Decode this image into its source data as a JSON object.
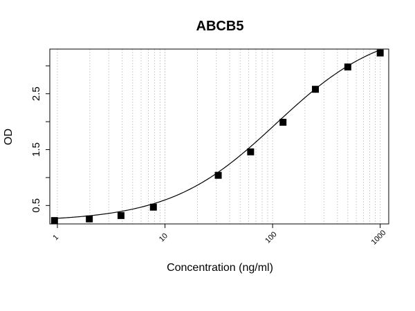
{
  "chart_data": {
    "type": "scatter",
    "title": "ABCB5",
    "xlabel": "Concentration (ng/ml)",
    "ylabel": "OD",
    "x_scale": "log",
    "xlim": [
      0.85,
      1200
    ],
    "ylim": [
      0.17,
      3.3
    ],
    "x_ticks": [
      1,
      10,
      100,
      1000
    ],
    "x_tick_labels": [
      "1",
      "10",
      "100",
      "1000"
    ],
    "y_ticks": [
      0.5,
      1,
      1.5,
      2,
      2.5,
      3
    ],
    "y_tick_labels": [
      "0.5",
      "",
      "1.5",
      "",
      "2.5",
      ""
    ],
    "grid": "vertical-minor-log",
    "series": [
      {
        "x": [
          0.94,
          1.98,
          3.9,
          7.8,
          31.25,
          62.5,
          125,
          250,
          500,
          1000
        ],
        "y": [
          0.23,
          0.26,
          0.32,
          0.47,
          1.04,
          1.46,
          1.99,
          2.58,
          2.98,
          3.23
        ],
        "marker": "square",
        "color": "#000000",
        "fit_line": true
      }
    ]
  }
}
